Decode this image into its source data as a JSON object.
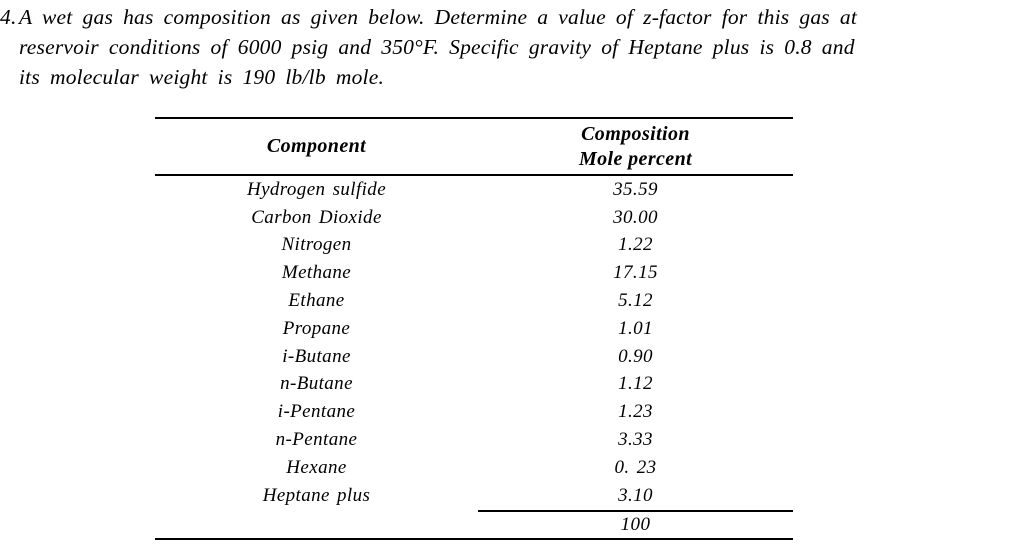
{
  "problem": {
    "number": "4.",
    "lines": [
      "A wet gas has composition as given below. Determine a value of z-factor for this gas at",
      "reservoir conditions of 6000 psig and 350°F. Specific gravity of Heptane plus is 0.8 and",
      "its molecular weight is 190 lb/lb mole."
    ]
  },
  "table": {
    "headers": {
      "component": "Component",
      "composition_line1": "Composition",
      "composition_line2": "Mole percent"
    },
    "rows": [
      {
        "component": "Hydrogen sulfide",
        "mole_percent": "35.59"
      },
      {
        "component": "Carbon Dioxide",
        "mole_percent": "30.00"
      },
      {
        "component": "Nitrogen",
        "mole_percent": "1.22"
      },
      {
        "component": "Methane",
        "mole_percent": "17.15"
      },
      {
        "component": "Ethane",
        "mole_percent": "5.12"
      },
      {
        "component": "Propane",
        "mole_percent": "1.01"
      },
      {
        "component": "i-Butane",
        "mole_percent": "0.90"
      },
      {
        "component": "n-Butane",
        "mole_percent": "1.12"
      },
      {
        "component": "i-Pentane",
        "mole_percent": "1.23"
      },
      {
        "component": "n-Pentane",
        "mole_percent": "3.33"
      },
      {
        "component": "Hexane",
        "mole_percent": "0. 23"
      },
      {
        "component": "Heptane plus",
        "mole_percent": "3.10"
      }
    ],
    "total": "100"
  },
  "colors": {
    "text": "#000000",
    "background": "#ffffff",
    "rule": "#000000"
  }
}
